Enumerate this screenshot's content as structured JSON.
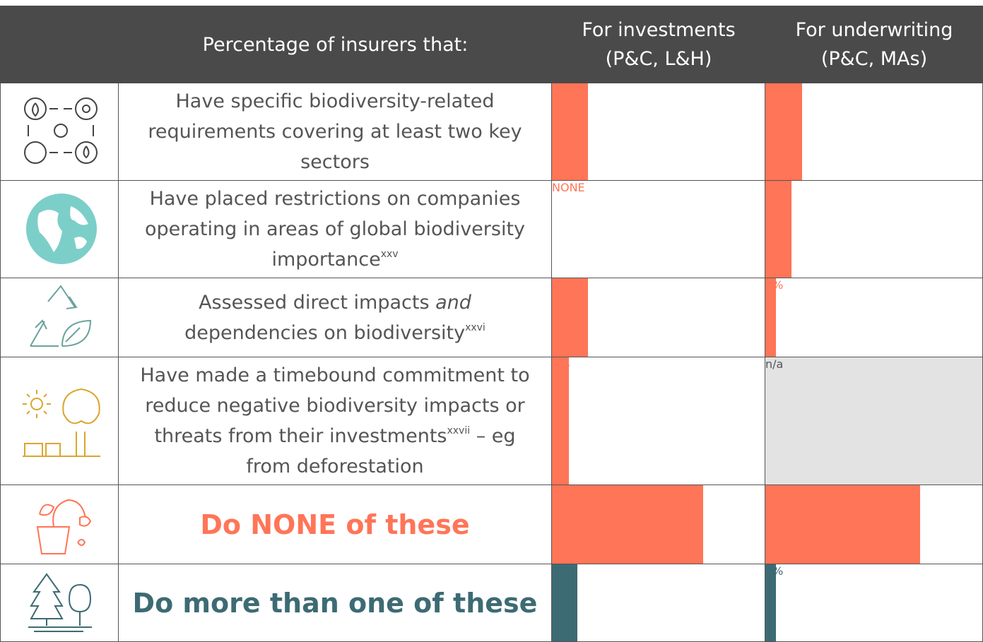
{
  "header": {
    "title": "Percentage of insurers that:",
    "investments": [
      "For investments",
      "(P&C, L&H)"
    ],
    "underwriting": [
      "For underwriting",
      "(P&C, MAs)"
    ]
  },
  "rows": [
    {
      "text": [
        {
          "t": "Have specific biodiversity-related requirements covering at least two key sectors",
          "s": "plain"
        }
      ],
      "headline": false,
      "color": "#ff7557",
      "investments": {
        "value": 17,
        "label": "17%"
      },
      "underwriting": {
        "value": 17,
        "label": "17%"
      }
    },
    {
      "text": [
        {
          "t": "Have placed restrictions on companies operating in areas of global biodiversity importance",
          "s": "plain"
        },
        {
          "t": "xxv",
          "s": "sup"
        }
      ],
      "headline": false,
      "color": "#ff7557",
      "investments": {
        "value": 0,
        "label": "NONE"
      },
      "underwriting": {
        "value": 12,
        "label": "12%"
      }
    },
    {
      "text": [
        {
          "t": "Assessed direct impacts ",
          "s": "plain"
        },
        {
          "t": "and",
          "s": "italic"
        },
        {
          "t": " dependencies on biodiversity",
          "s": "plain"
        },
        {
          "t": "xxvi",
          "s": "sup"
        }
      ],
      "headline": false,
      "color": "#ff7557",
      "investments": {
        "value": 17,
        "label": "17%"
      },
      "underwriting": {
        "value": 5,
        "label": "5%"
      }
    },
    {
      "text": [
        {
          "t": "Have made a timebound commitment to reduce negative biodiversity impacts or threats from their investments",
          "s": "plain"
        },
        {
          "t": "xxvii",
          "s": "sup"
        },
        {
          "t": " – eg from deforestation",
          "s": "plain"
        }
      ],
      "headline": false,
      "color": "#ff7557",
      "investments": {
        "value": 8,
        "label": "8%"
      },
      "underwriting": {
        "value": null,
        "label": "n/a"
      }
    },
    {
      "text": [
        {
          "t": "Do NONE of these",
          "s": "plain"
        }
      ],
      "headline": true,
      "color": "#ff7557",
      "investments": {
        "value": 71,
        "label": "71%"
      },
      "underwriting": {
        "value": 71,
        "label": "71%"
      }
    },
    {
      "text": [
        {
          "t": "Do more than one of these",
          "s": "plain"
        }
      ],
      "headline": true,
      "color": "#3d6b73",
      "investments": {
        "value": 12,
        "label": "12%"
      },
      "underwriting": {
        "value": 5,
        "label": "5%"
      }
    }
  ]
}
